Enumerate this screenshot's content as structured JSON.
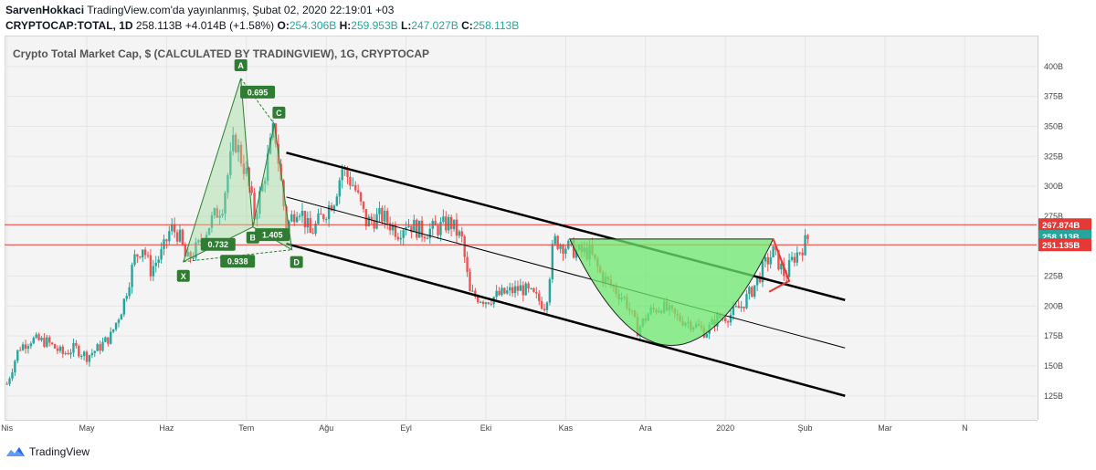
{
  "header": {
    "author": "SarvenHokkaci",
    "published": "TradingView.com'da yayınlanmış, Şubat 02, 2020 22:19:01 +03",
    "symbol": "CRYPTOCAP:TOTAL, 1D",
    "last": "258.113B",
    "change": "+4.014B (+1.58%)",
    "o_label": "O:",
    "o_val": "254.306B",
    "h_label": "H:",
    "h_val": "259.953B",
    "l_label": "L:",
    "l_val": "247.027B",
    "c_label": "C:",
    "c_val": "258.113B"
  },
  "footer": {
    "brand": "TradingView"
  },
  "colors": {
    "up": "#26a69a",
    "down": "#ef5350",
    "hline": "#e53935",
    "pattern": "#2e7d32",
    "fill": "#6ee86e",
    "channel": "#000000"
  },
  "chart_data": {
    "type": "candlestick",
    "title": "Crypto Total Market Cap, $ (CALCULATED BY TRADINGVIEW), 1G, CRYPTOCAP",
    "y_ticks": [
      "400B",
      "375B",
      "350B",
      "325B",
      "300B",
      "275B",
      "225B",
      "200B",
      "175B",
      "150B",
      "125B"
    ],
    "y_tick_values": [
      400,
      375,
      350,
      325,
      300,
      275,
      225,
      200,
      175,
      150,
      125
    ],
    "x_ticks": [
      "Nis",
      "May",
      "Haz",
      "Tem",
      "Ağu",
      "Eyl",
      "Eki",
      "Kas",
      "Ara",
      "2020",
      "Şub",
      "Mar",
      "N"
    ],
    "x_tick_months": [
      0,
      1,
      2,
      3,
      4,
      5,
      6,
      7,
      8,
      9,
      10,
      11,
      12
    ],
    "ylim": [
      105,
      425
    ],
    "xlim_months": [
      -0.03,
      12.9
    ],
    "price_labels": [
      {
        "text": "267.874B",
        "value": 267.874,
        "color": "#e53935"
      },
      {
        "text": "258.113B",
        "value": 258.113,
        "color": "#26a69a"
      },
      {
        "text": "251.135B",
        "value": 251.135,
        "color": "#e53935"
      }
    ],
    "hlines": [
      267.874,
      251.135
    ],
    "price_path": [
      [
        0.0,
        135
      ],
      [
        0.15,
        165
      ],
      [
        0.3,
        172
      ],
      [
        0.5,
        170
      ],
      [
        0.7,
        160
      ],
      [
        0.85,
        165
      ],
      [
        1.0,
        158
      ],
      [
        1.15,
        165
      ],
      [
        1.3,
        175
      ],
      [
        1.45,
        200
      ],
      [
        1.6,
        240
      ],
      [
        1.7,
        250
      ],
      [
        1.8,
        230
      ],
      [
        1.95,
        245
      ],
      [
        2.05,
        265
      ],
      [
        2.15,
        260
      ],
      [
        2.25,
        237
      ],
      [
        2.4,
        250
      ],
      [
        2.55,
        270
      ],
      [
        2.7,
        285
      ],
      [
        2.85,
        340
      ],
      [
        3.0,
        310
      ],
      [
        3.1,
        275
      ],
      [
        3.2,
        300
      ],
      [
        3.35,
        350
      ],
      [
        3.5,
        265
      ],
      [
        3.65,
        285
      ],
      [
        3.8,
        260
      ],
      [
        3.95,
        275
      ],
      [
        4.1,
        290
      ],
      [
        4.2,
        315
      ],
      [
        4.35,
        300
      ],
      [
        4.5,
        270
      ],
      [
        4.7,
        275
      ],
      [
        4.9,
        262
      ],
      [
        5.0,
        270
      ],
      [
        5.2,
        262
      ],
      [
        5.4,
        265
      ],
      [
        5.55,
        270
      ],
      [
        5.7,
        255
      ],
      [
        5.8,
        210
      ],
      [
        6.0,
        205
      ],
      [
        6.2,
        210
      ],
      [
        6.45,
        215
      ],
      [
        6.6,
        208
      ],
      [
        6.75,
        200
      ],
      [
        6.85,
        255
      ],
      [
        7.0,
        250
      ],
      [
        7.15,
        245
      ],
      [
        7.3,
        245
      ],
      [
        7.45,
        225
      ],
      [
        7.6,
        215
      ],
      [
        7.75,
        205
      ],
      [
        7.9,
        180
      ],
      [
        8.05,
        195
      ],
      [
        8.2,
        200
      ],
      [
        8.4,
        190
      ],
      [
        8.6,
        185
      ],
      [
        8.75,
        178
      ],
      [
        8.9,
        190
      ],
      [
        9.05,
        192
      ],
      [
        9.2,
        200
      ],
      [
        9.35,
        215
      ],
      [
        9.5,
        235
      ],
      [
        9.6,
        245
      ],
      [
        9.75,
        225
      ],
      [
        9.85,
        240
      ],
      [
        9.95,
        248
      ],
      [
        10.05,
        258
      ]
    ],
    "harmonic": {
      "points": [
        {
          "label": "X",
          "month": 2.21,
          "value": 237
        },
        {
          "label": "A",
          "month": 2.93,
          "value": 390
        },
        {
          "label": "B",
          "month": 3.08,
          "value": 266
        },
        {
          "label": "C",
          "month": 3.35,
          "value": 352
        },
        {
          "label": "D",
          "month": 3.57,
          "value": 247
        }
      ],
      "ratios": [
        "0.695",
        "0.732",
        "0.938",
        "1.405"
      ]
    },
    "channel": {
      "upper": [
        [
          3.5,
          328
        ],
        [
          10.5,
          205
        ]
      ],
      "middle": [
        [
          3.5,
          291
        ],
        [
          10.5,
          165
        ]
      ],
      "lower": [
        [
          3.5,
          252
        ],
        [
          10.5,
          125
        ]
      ]
    },
    "cup": {
      "left": [
        7.05,
        256
      ],
      "right": [
        9.6,
        256
      ],
      "bottom_value": 167
    },
    "flag": {
      "top": [
        9.6,
        256
      ],
      "bottom": [
        9.8,
        221
      ]
    }
  }
}
